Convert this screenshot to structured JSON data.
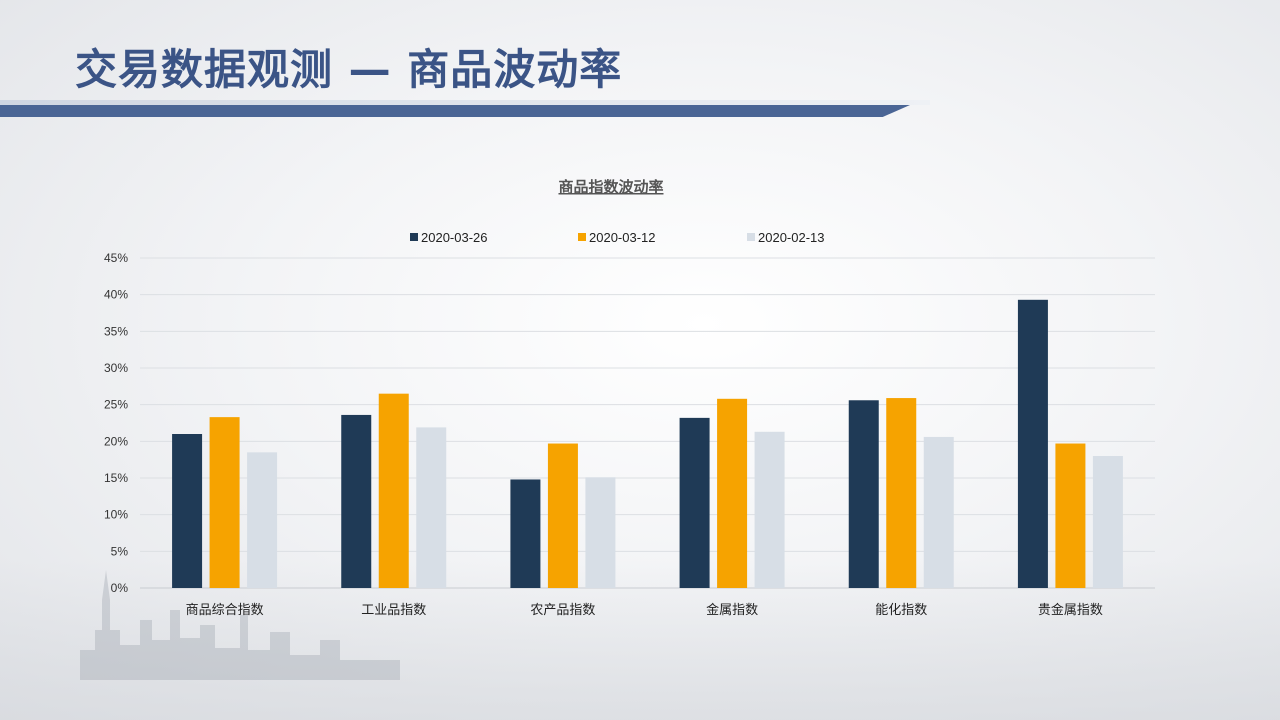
{
  "page": {
    "title": "交易数据观测 — 商品波动率"
  },
  "colors": {
    "title": "#3b5486",
    "rule": "#4a6595",
    "series": [
      "#1f3a56",
      "#f6a300",
      "#d7dee6"
    ]
  },
  "chart_data": {
    "type": "bar",
    "title": "商品指数波动率",
    "categories": [
      "商品综合指数",
      "工业品指数",
      "农产品指数",
      "金属指数",
      "能化指数",
      "贵金属指数"
    ],
    "series": [
      {
        "name": "2020-03-26",
        "values": [
          21.0,
          23.6,
          14.8,
          23.2,
          25.6,
          39.3
        ]
      },
      {
        "name": "2020-03-12",
        "values": [
          23.3,
          26.5,
          19.7,
          25.8,
          25.9,
          19.7
        ]
      },
      {
        "name": "2020-02-13",
        "values": [
          18.5,
          21.9,
          15.1,
          21.3,
          20.6,
          18.0
        ]
      }
    ],
    "ylim": [
      0,
      45
    ],
    "yticks": [
      "0%",
      "5%",
      "10%",
      "15%",
      "20%",
      "25%",
      "30%",
      "35%",
      "40%",
      "45%"
    ],
    "grid": true,
    "legend": "top-center"
  }
}
